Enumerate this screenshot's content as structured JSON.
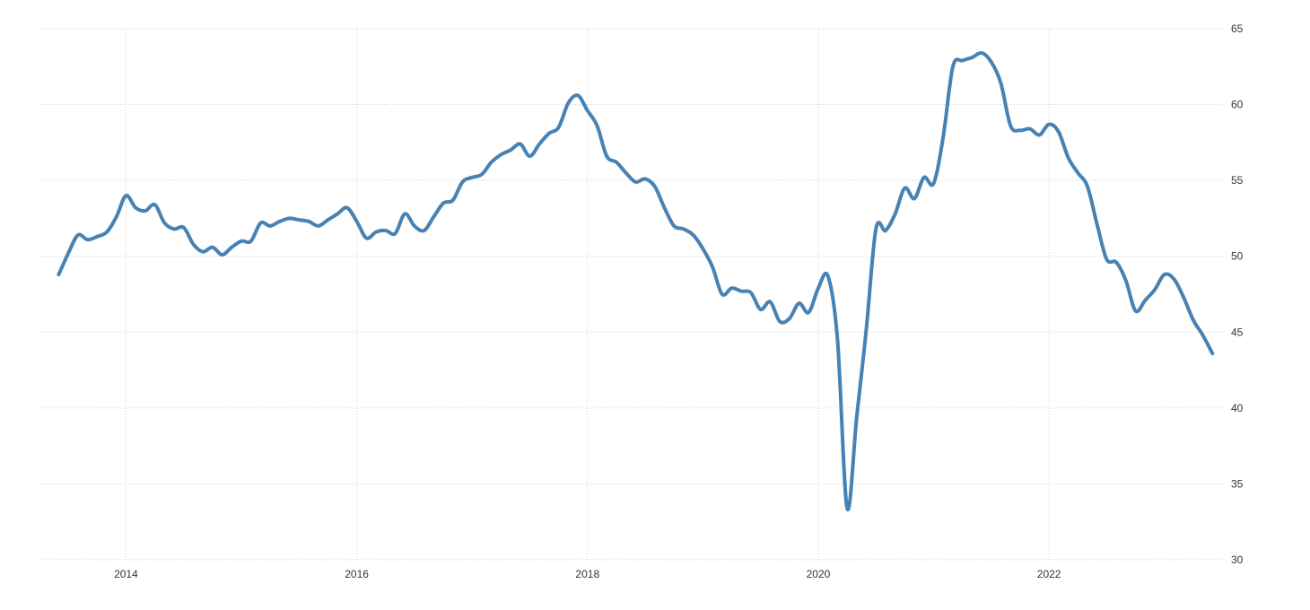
{
  "chart_data": {
    "type": "line",
    "title": "",
    "xlabel": "",
    "ylabel": "",
    "ylim": [
      30,
      65
    ],
    "xlim": [
      "2013-06",
      "2023-06"
    ],
    "grid": true,
    "y_ticks": [
      65,
      60,
      55,
      50,
      45,
      40,
      35,
      30
    ],
    "x_ticks": [
      "2014",
      "2016",
      "2018",
      "2020",
      "2022"
    ],
    "series": [
      {
        "color": "#4682b4",
        "points": [
          [
            "2013-06",
            48.8
          ],
          [
            "2013-07",
            50.2
          ],
          [
            "2013-08",
            51.4
          ],
          [
            "2013-09",
            51.1
          ],
          [
            "2013-10",
            51.3
          ],
          [
            "2013-11",
            51.6
          ],
          [
            "2013-12",
            52.6
          ],
          [
            "2014-01",
            54.0
          ],
          [
            "2014-02",
            53.2
          ],
          [
            "2014-03",
            53.0
          ],
          [
            "2014-04",
            53.4
          ],
          [
            "2014-05",
            52.2
          ],
          [
            "2014-06",
            51.8
          ],
          [
            "2014-07",
            51.9
          ],
          [
            "2014-08",
            50.8
          ],
          [
            "2014-09",
            50.3
          ],
          [
            "2014-10",
            50.6
          ],
          [
            "2014-11",
            50.1
          ],
          [
            "2014-12",
            50.6
          ],
          [
            "2015-01",
            51.0
          ],
          [
            "2015-02",
            51.0
          ],
          [
            "2015-03",
            52.2
          ],
          [
            "2015-04",
            52.0
          ],
          [
            "2015-05",
            52.3
          ],
          [
            "2015-06",
            52.5
          ],
          [
            "2015-07",
            52.4
          ],
          [
            "2015-08",
            52.3
          ],
          [
            "2015-09",
            52.0
          ],
          [
            "2015-10",
            52.4
          ],
          [
            "2015-11",
            52.8
          ],
          [
            "2015-12",
            53.2
          ],
          [
            "2016-01",
            52.3
          ],
          [
            "2016-02",
            51.2
          ],
          [
            "2016-03",
            51.6
          ],
          [
            "2016-04",
            51.7
          ],
          [
            "2016-05",
            51.5
          ],
          [
            "2016-06",
            52.8
          ],
          [
            "2016-07",
            52.0
          ],
          [
            "2016-08",
            51.7
          ],
          [
            "2016-09",
            52.6
          ],
          [
            "2016-10",
            53.5
          ],
          [
            "2016-11",
            53.7
          ],
          [
            "2016-12",
            54.9
          ],
          [
            "2017-01",
            55.2
          ],
          [
            "2017-02",
            55.4
          ],
          [
            "2017-03",
            56.2
          ],
          [
            "2017-04",
            56.7
          ],
          [
            "2017-05",
            57.0
          ],
          [
            "2017-06",
            57.4
          ],
          [
            "2017-07",
            56.6
          ],
          [
            "2017-08",
            57.4
          ],
          [
            "2017-09",
            58.1
          ],
          [
            "2017-10",
            58.5
          ],
          [
            "2017-11",
            60.1
          ],
          [
            "2017-12",
            60.6
          ],
          [
            "2018-01",
            59.6
          ],
          [
            "2018-02",
            58.6
          ],
          [
            "2018-03",
            56.6
          ],
          [
            "2018-04",
            56.2
          ],
          [
            "2018-05",
            55.5
          ],
          [
            "2018-06",
            54.9
          ],
          [
            "2018-07",
            55.1
          ],
          [
            "2018-08",
            54.6
          ],
          [
            "2018-09",
            53.2
          ],
          [
            "2018-10",
            52.0
          ],
          [
            "2018-11",
            51.8
          ],
          [
            "2018-12",
            51.4
          ],
          [
            "2019-01",
            50.5
          ],
          [
            "2019-02",
            49.3
          ],
          [
            "2019-03",
            47.5
          ],
          [
            "2019-04",
            47.9
          ],
          [
            "2019-05",
            47.7
          ],
          [
            "2019-06",
            47.6
          ],
          [
            "2019-07",
            46.5
          ],
          [
            "2019-08",
            47.0
          ],
          [
            "2019-09",
            45.7
          ],
          [
            "2019-10",
            45.9
          ],
          [
            "2019-11",
            46.9
          ],
          [
            "2019-12",
            46.3
          ],
          [
            "2020-01",
            47.9
          ],
          [
            "2020-02",
            48.7
          ],
          [
            "2020-03",
            44.5
          ],
          [
            "2020-04",
            33.4
          ],
          [
            "2020-05",
            39.4
          ],
          [
            "2020-06",
            45.2
          ],
          [
            "2020-07",
            51.8
          ],
          [
            "2020-08",
            51.7
          ],
          [
            "2020-09",
            52.8
          ],
          [
            "2020-10",
            54.5
          ],
          [
            "2020-11",
            53.8
          ],
          [
            "2020-12",
            55.2
          ],
          [
            "2021-01",
            54.8
          ],
          [
            "2021-02",
            57.9
          ],
          [
            "2021-03",
            62.5
          ],
          [
            "2021-04",
            62.9
          ],
          [
            "2021-05",
            63.1
          ],
          [
            "2021-06",
            63.4
          ],
          [
            "2021-07",
            62.8
          ],
          [
            "2021-08",
            61.4
          ],
          [
            "2021-09",
            58.6
          ],
          [
            "2021-10",
            58.3
          ],
          [
            "2021-11",
            58.4
          ],
          [
            "2021-12",
            58.0
          ],
          [
            "2022-01",
            58.7
          ],
          [
            "2022-02",
            58.2
          ],
          [
            "2022-03",
            56.5
          ],
          [
            "2022-04",
            55.5
          ],
          [
            "2022-05",
            54.6
          ],
          [
            "2022-06",
            52.1
          ],
          [
            "2022-07",
            49.8
          ],
          [
            "2022-08",
            49.6
          ],
          [
            "2022-09",
            48.4
          ],
          [
            "2022-10",
            46.4
          ],
          [
            "2022-11",
            47.1
          ],
          [
            "2022-12",
            47.8
          ],
          [
            "2023-01",
            48.8
          ],
          [
            "2023-02",
            48.5
          ],
          [
            "2023-03",
            47.3
          ],
          [
            "2023-04",
            45.8
          ],
          [
            "2023-05",
            44.8
          ],
          [
            "2023-06",
            43.6
          ]
        ]
      }
    ]
  }
}
